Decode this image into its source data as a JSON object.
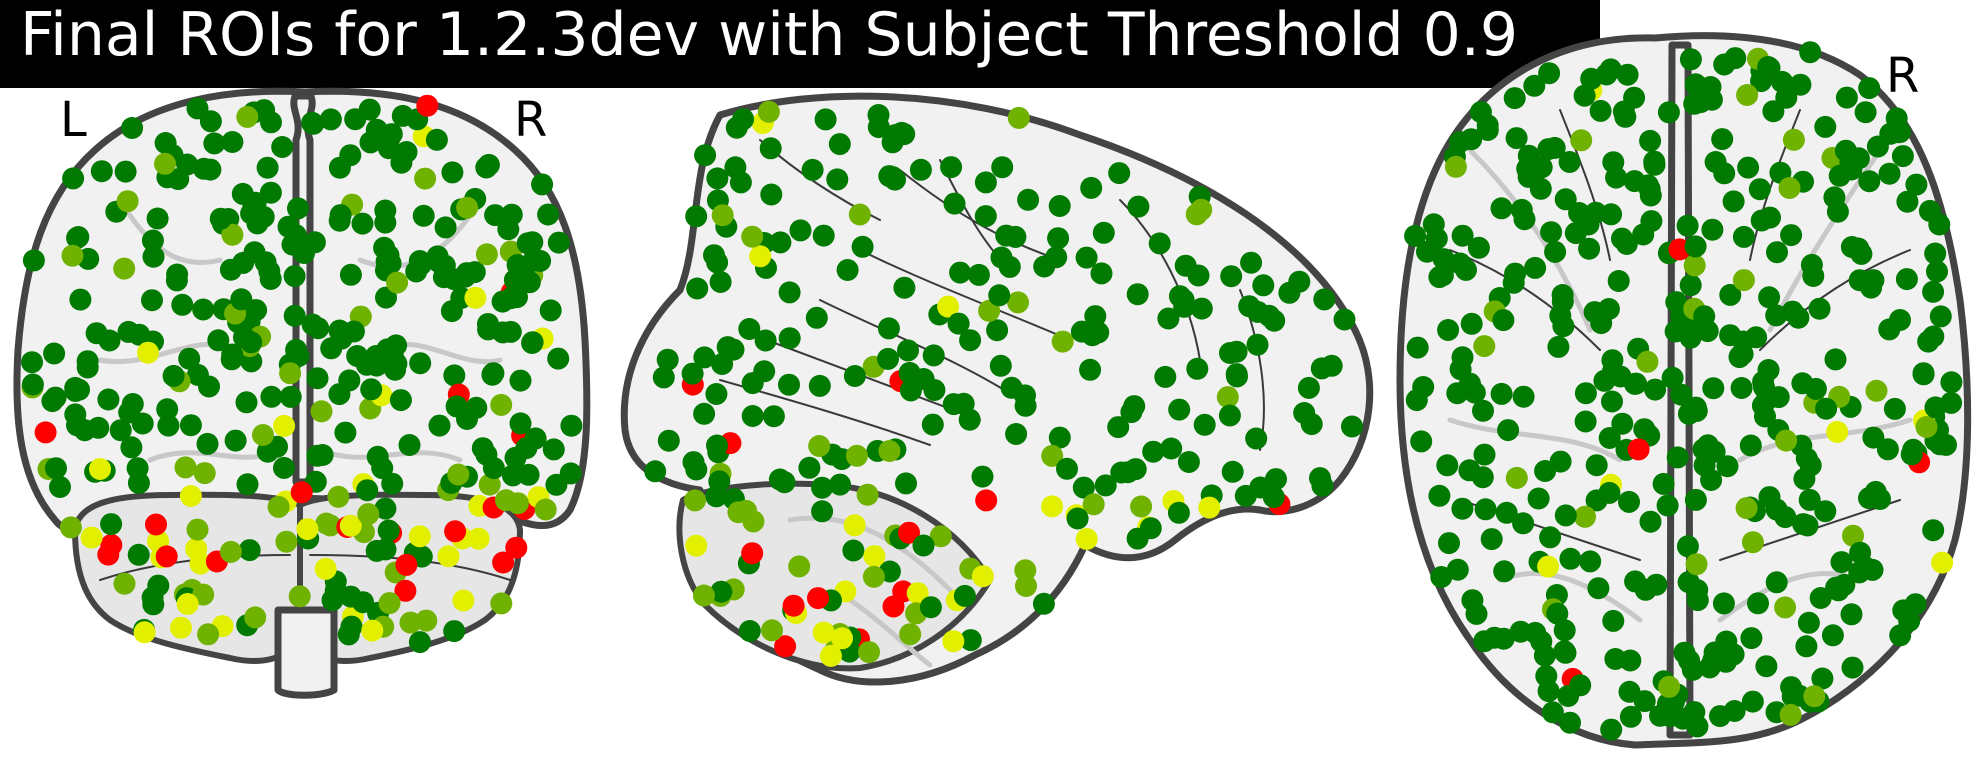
{
  "title": "Final ROIs for 1.2.3dev with Subject Threshold 0.9",
  "orientation_labels": {
    "coronal_left": "L",
    "coronal_right": "R",
    "axial_right": "R"
  },
  "colors": {
    "strong": "#007a00",
    "moderate": "#6fb200",
    "weak": "#e2f000",
    "failing": "#ff0000"
  },
  "marker_counts": {
    "coronal": 380,
    "sagittal": 280,
    "axial": 420
  },
  "views": [
    "coronal",
    "sagittal",
    "axial"
  ]
}
